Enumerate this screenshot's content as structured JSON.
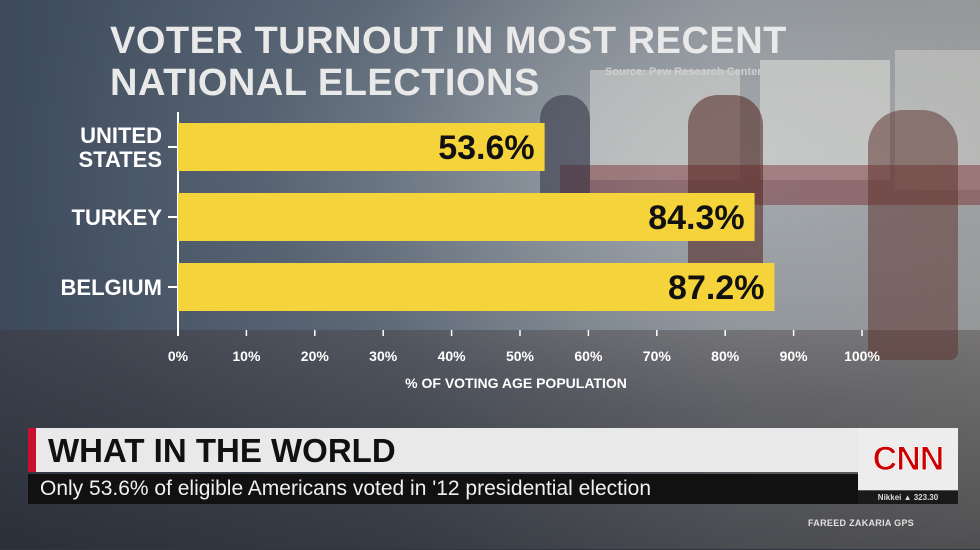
{
  "title": "VOTER TURNOUT IN MOST RECENT NATIONAL ELECTIONS",
  "source": "Source: Pew Research Center",
  "chart_data": {
    "type": "bar",
    "orientation": "horizontal",
    "categories": [
      [
        "UNITED",
        "STATES"
      ],
      [
        "TURKEY"
      ],
      [
        "BELGIUM"
      ]
    ],
    "values": [
      53.6,
      84.3,
      87.2
    ],
    "value_labels": [
      "53.6%",
      "84.3%",
      "87.2%"
    ],
    "xlabel": "% OF VOTING AGE POPULATION",
    "xlim": [
      0,
      100
    ],
    "xticks": [
      0,
      10,
      20,
      30,
      40,
      50,
      60,
      70,
      80,
      90,
      100
    ],
    "xtick_labels": [
      "0%",
      "10%",
      "20%",
      "30%",
      "40%",
      "50%",
      "60%",
      "70%",
      "80%",
      "90%",
      "100%"
    ],
    "bar_color": "#f5d33a",
    "grid": false
  },
  "lower_third": {
    "headline": "WHAT IN THE WORLD",
    "subline": "Only 53.6% of eligible Americans voted in '12 presidential election",
    "logo": "CNN",
    "ticker": "Nikkei ▲ 323.30",
    "show": "FAREED ZAKARIA GPS"
  },
  "colors": {
    "accent": "#c8102e",
    "logo": "#cc0000"
  }
}
